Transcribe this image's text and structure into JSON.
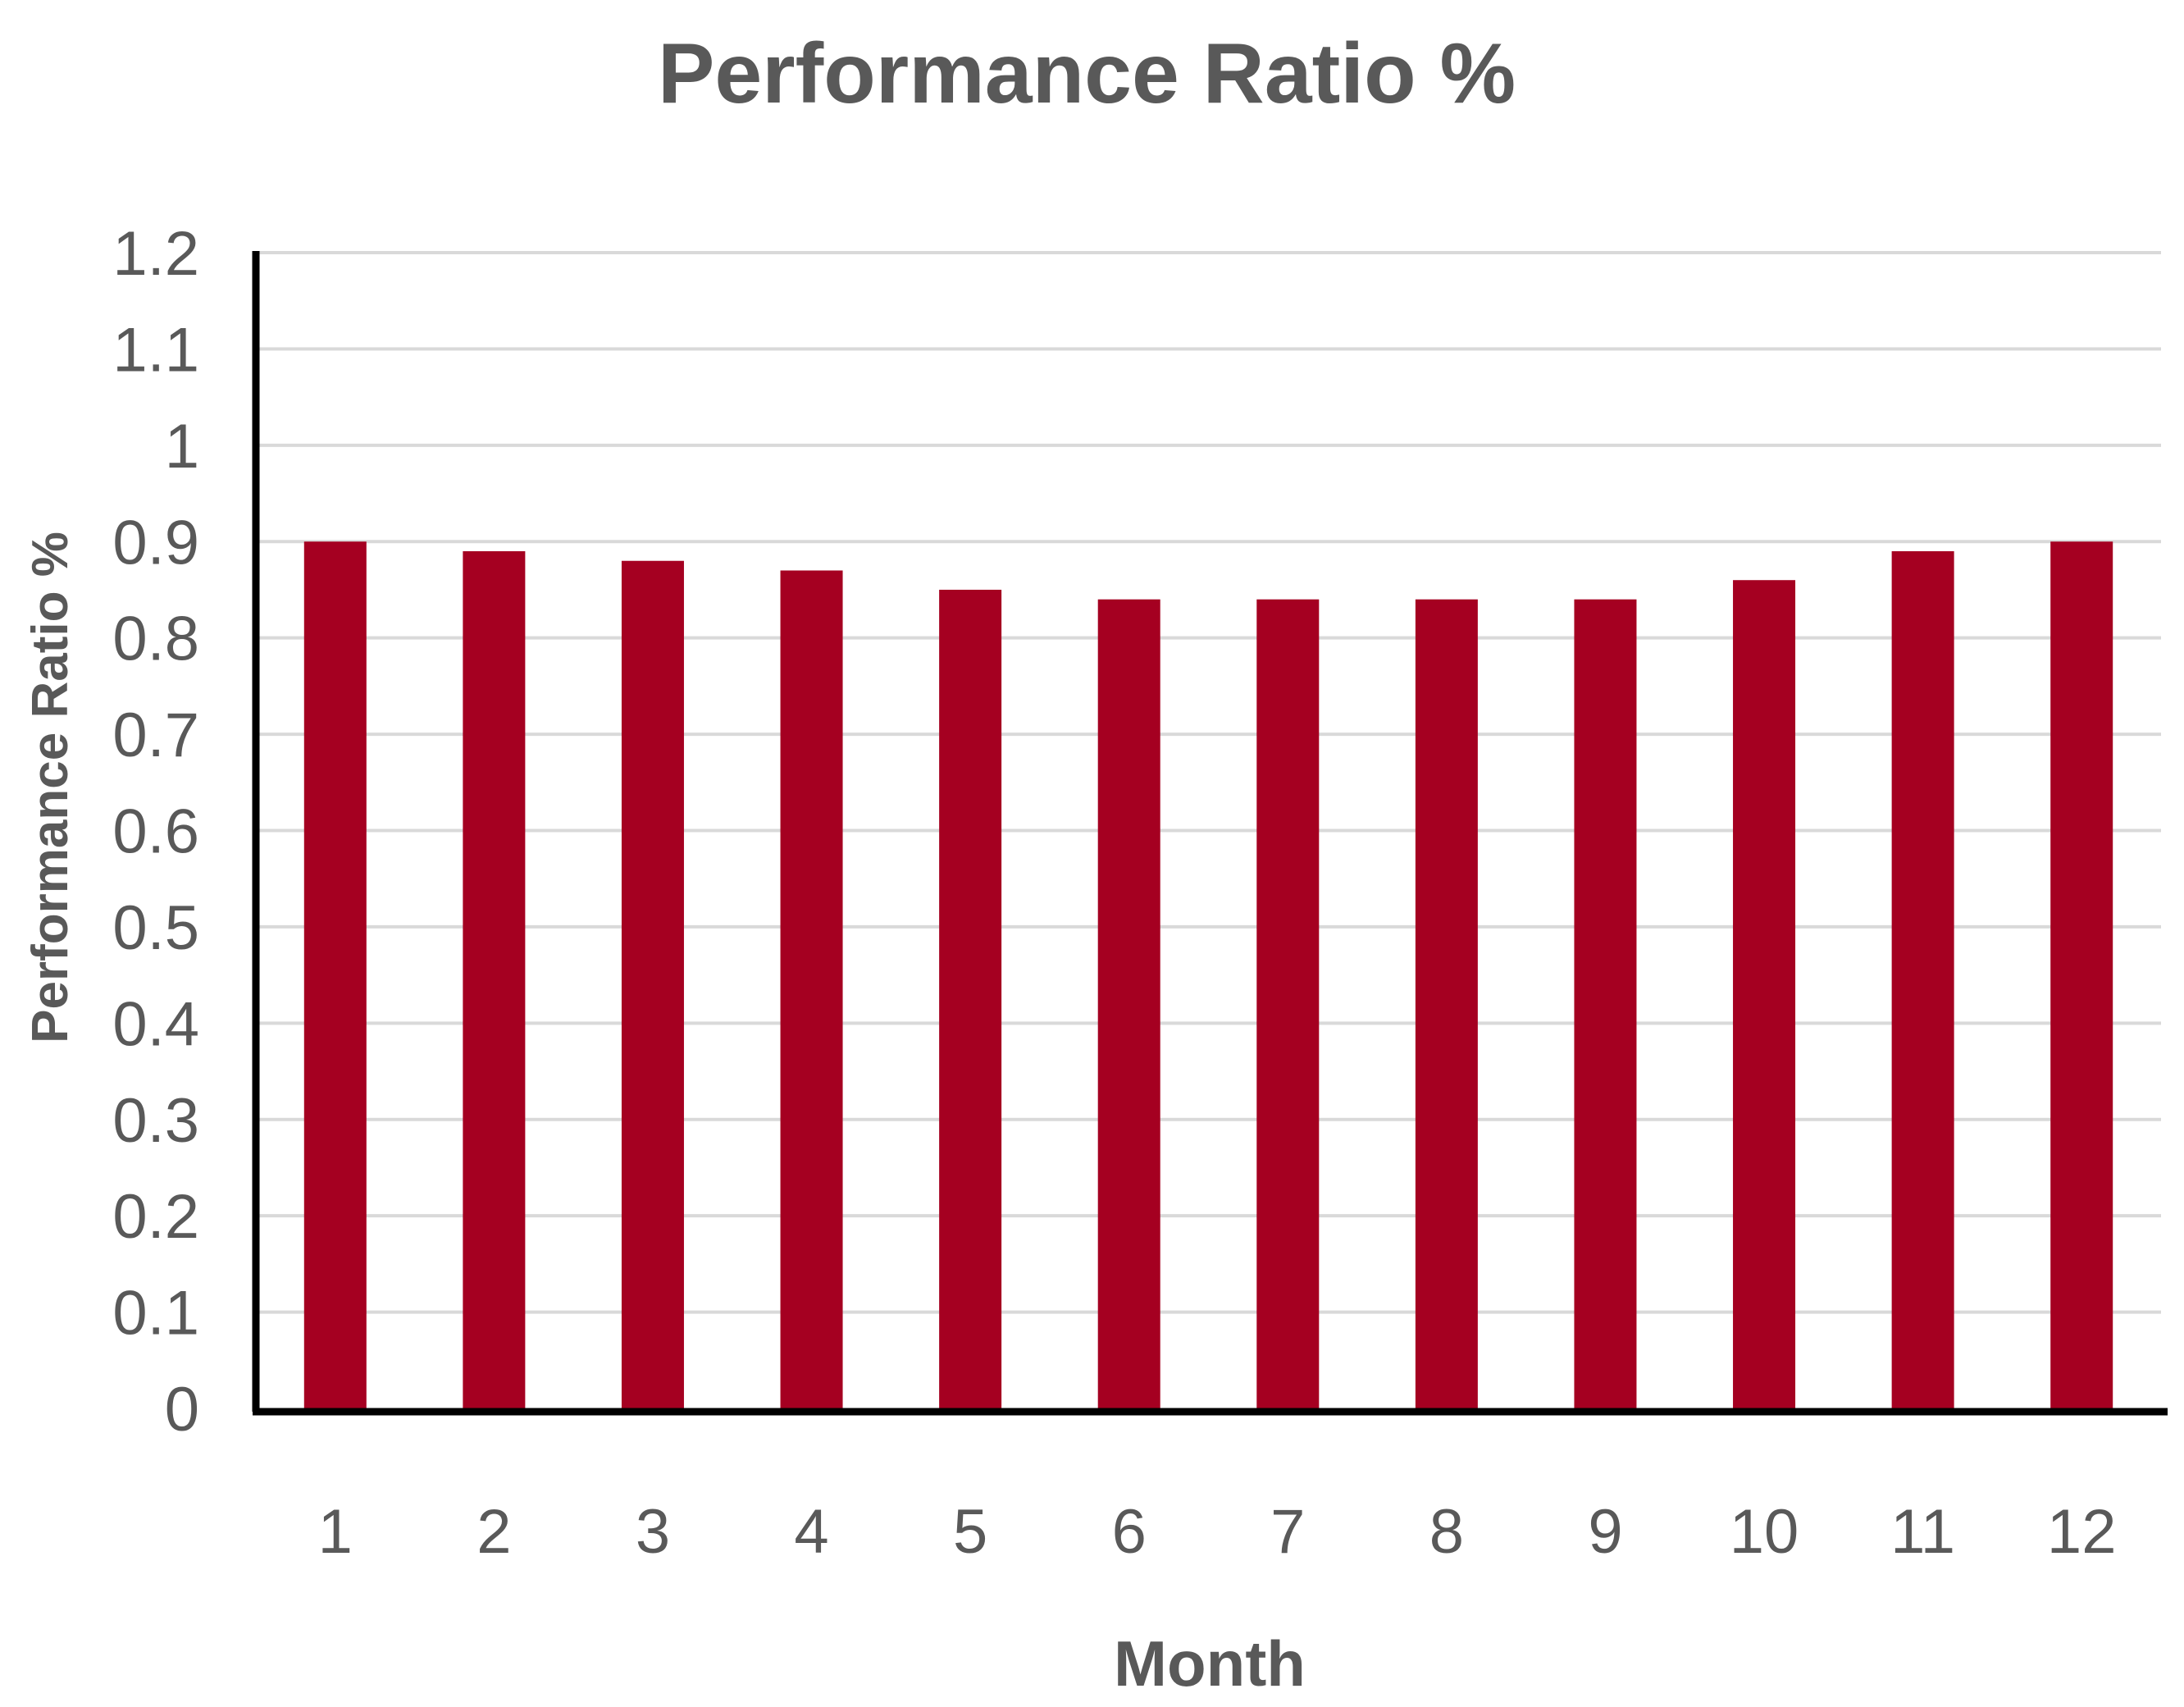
{
  "chart_data": {
    "type": "bar",
    "title": "Performance Ratio %",
    "xlabel": "Month",
    "ylabel": "Performance  Ratio %",
    "categories": [
      "1",
      "2",
      "3",
      "4",
      "5",
      "6",
      "7",
      "8",
      "9",
      "10",
      "11",
      "12"
    ],
    "series": [
      {
        "values": [
          0.9,
          0.89,
          0.88,
          0.87,
          0.85,
          0.84,
          0.84,
          0.84,
          0.84,
          0.86,
          0.89,
          0.9
        ]
      }
    ],
    "ylim": [
      0,
      1.2
    ],
    "yticks": [
      "0",
      "0.1",
      "0.2",
      "0.3",
      "0.4",
      "0.5",
      "0.6",
      "0.7",
      "0.8",
      "0.9",
      "1",
      "1.1",
      "1.2"
    ],
    "ytick_values": [
      0,
      0.1,
      0.2,
      0.3,
      0.4,
      0.5,
      0.6,
      0.7,
      0.8,
      0.9,
      1,
      1.1,
      1.2
    ],
    "grid": true,
    "legend": "none",
    "colors": {
      "bar": "#A50021",
      "grid": "#D9D9D9",
      "axis": "#000000",
      "text": "#595959"
    }
  }
}
